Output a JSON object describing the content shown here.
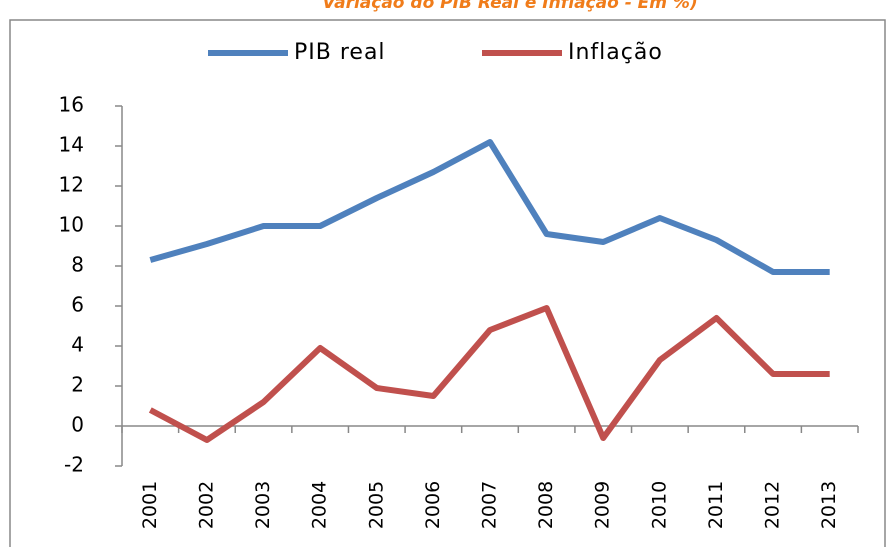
{
  "chart_data": {
    "type": "line",
    "title": "Variação do PIB Real e Inflação - Em %)",
    "categories": [
      "2001",
      "2002",
      "2003",
      "2004",
      "2005",
      "2006",
      "2007",
      "2008",
      "2009",
      "2010",
      "2011",
      "2012",
      "2013"
    ],
    "series": [
      {
        "name": "PIB real",
        "color": "#4f81bd",
        "values": [
          8.3,
          9.1,
          10.0,
          10.0,
          11.4,
          12.7,
          14.2,
          9.6,
          9.2,
          10.4,
          9.3,
          7.7,
          7.7
        ]
      },
      {
        "name": "Inflação",
        "color": "#c0504d",
        "values": [
          0.8,
          -0.7,
          1.2,
          3.9,
          1.9,
          1.5,
          4.8,
          5.9,
          -0.6,
          3.3,
          5.4,
          2.6,
          2.6
        ]
      }
    ],
    "ylim": [
      -2,
      16
    ],
    "yticks": [
      -2,
      0,
      2,
      4,
      6,
      8,
      10,
      12,
      14,
      16
    ],
    "legend": "top"
  }
}
